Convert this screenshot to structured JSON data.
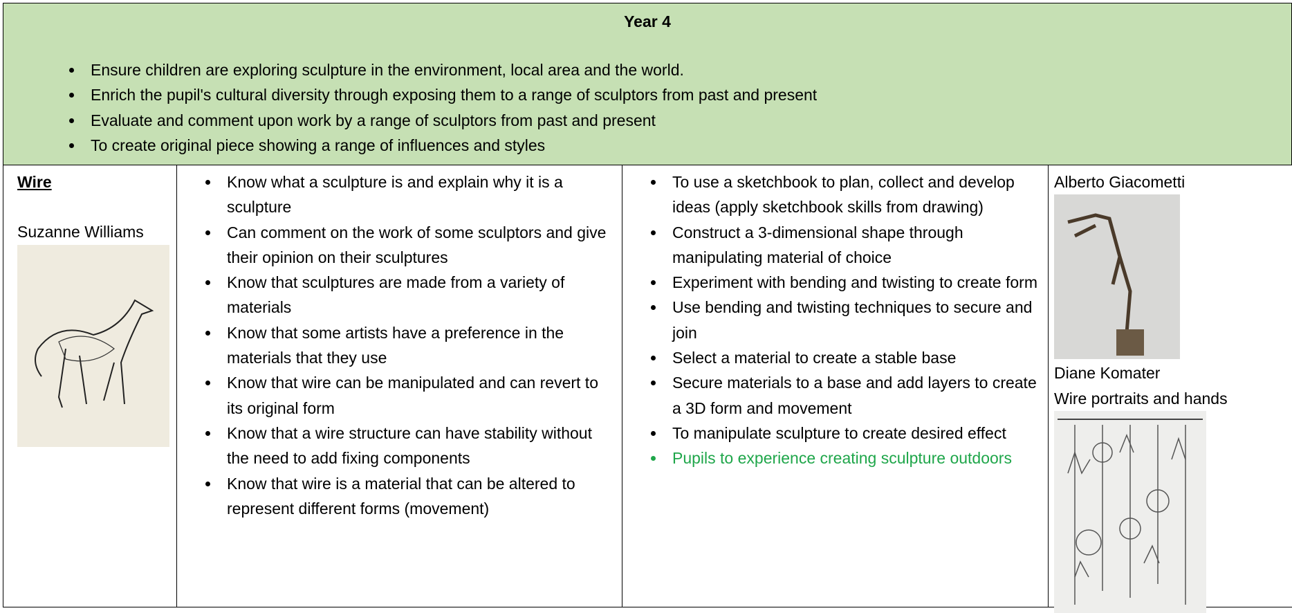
{
  "header": {
    "title": "Year 4"
  },
  "objectives": [
    "Ensure children are exploring sculpture in the environment, local area and the world.",
    "Enrich the pupil's cultural diversity through exposing them to a range of sculptors from past and present",
    "Evaluate and comment upon work by a range of sculptors from past and present",
    "To create original piece showing a range of influences and styles"
  ],
  "unit": {
    "topic": "Wire",
    "artist": "Suzanne Williams"
  },
  "knowledge": [
    "Know what a sculpture is and explain why it is a sculpture",
    "Can comment on the work of some sculptors and give their opinion on their sculptures",
    "Know that sculptures are made from a variety of materials",
    "Know that some artists have a preference in the materials that they use",
    "Know that wire can be manipulated and can revert to its original form",
    "Know that a wire structure can have stability without the need to add fixing components",
    "Know that wire is a material that can be altered to represent different forms (movement)"
  ],
  "skills": [
    "To use a sketchbook to plan, collect and develop ideas (apply sketchbook skills from drawing)",
    "Construct a 3-dimensional shape through manipulating material of choice",
    "Experiment with bending and twisting to create form",
    "Use bending and twisting techniques to secure and join",
    "Select a material to create a stable base",
    "Secure materials to a base and add layers to create a 3D form and movement",
    "To manipulate sculpture to create desired effect"
  ],
  "skills_note": {
    "text": "Pupils to experience creating sculpture outdoors",
    "color": "#1fa64a"
  },
  "artists": [
    {
      "name": "Alberto Giacometti"
    },
    {
      "name": "Diane Komater",
      "work": "Wire portraits and hands"
    }
  ]
}
